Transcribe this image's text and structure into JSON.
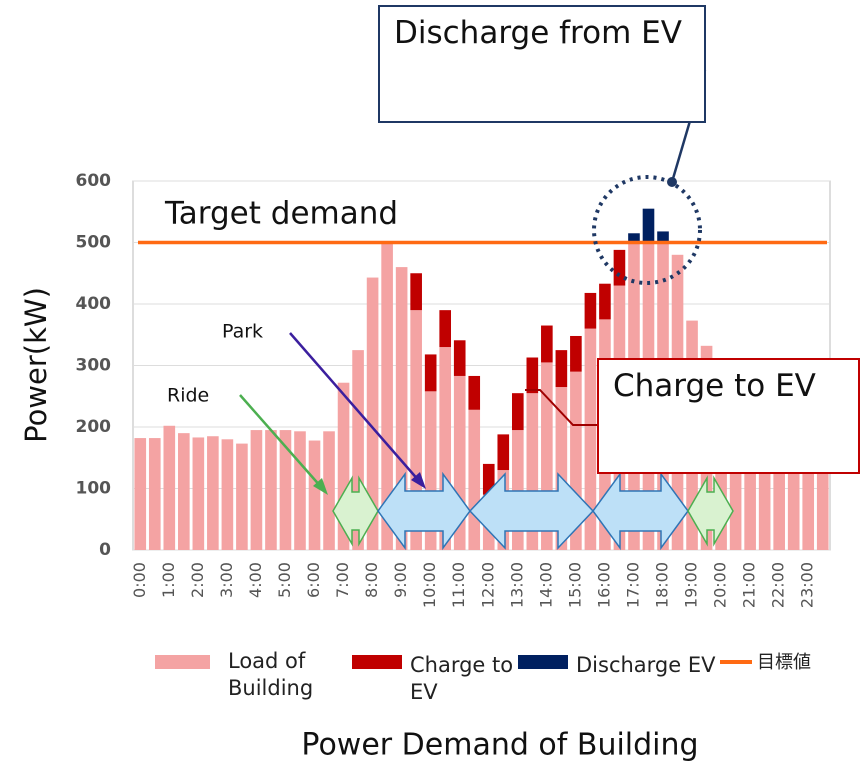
{
  "chart_data": {
    "type": "bar",
    "title": "Power Demand of Building",
    "y_label": "Power(kW)",
    "categories": [
      "0:00",
      null,
      "1:00",
      null,
      "2:00",
      null,
      "3:00",
      null,
      "4:00",
      null,
      "5:00",
      null,
      "6:00",
      null,
      "7:00",
      null,
      "8:00",
      null,
      "9:00",
      null,
      "10:00",
      null,
      "11:00",
      null,
      "12:00",
      null,
      "13:00",
      null,
      "14:00",
      null,
      "15:00",
      null,
      "16:00",
      null,
      "17:00",
      null,
      "18:00",
      null,
      "19:00",
      null,
      "20:00",
      null,
      "21:00",
      null,
      "22:00",
      null,
      "23:00",
      null
    ],
    "series": [
      {
        "name": "Load of Building",
        "color": "#f4a3a3",
        "values": [
          182,
          182,
          202,
          190,
          183,
          185,
          180,
          173,
          195,
          195,
          195,
          193,
          178,
          193,
          272,
          325,
          443,
          500,
          460,
          390,
          258,
          330,
          283,
          228,
          90,
          130,
          195,
          255,
          305,
          265,
          290,
          360,
          375,
          430,
          500,
          500,
          500,
          480,
          373,
          332,
          290,
          260,
          240,
          220,
          210,
          200,
          195,
          190
        ]
      },
      {
        "name": "Charge to EV",
        "color": "#c00000",
        "values": [
          null,
          null,
          null,
          null,
          null,
          null,
          null,
          null,
          null,
          null,
          null,
          null,
          null,
          null,
          null,
          null,
          null,
          null,
          null,
          60,
          60,
          60,
          58,
          55,
          50,
          58,
          60,
          58,
          60,
          60,
          58,
          58,
          58,
          58,
          null,
          null,
          null,
          null,
          null,
          null,
          null,
          null,
          null,
          null,
          null,
          null,
          null,
          null
        ]
      },
      {
        "name": "Discharge EV",
        "color": "#002060",
        "values": [
          null,
          null,
          null,
          null,
          null,
          null,
          null,
          null,
          null,
          null,
          null,
          null,
          null,
          null,
          null,
          null,
          null,
          null,
          null,
          null,
          null,
          null,
          null,
          null,
          null,
          null,
          null,
          null,
          null,
          null,
          null,
          null,
          null,
          null,
          15,
          55,
          18,
          null,
          null,
          null,
          null,
          null,
          null,
          null,
          null,
          null,
          null,
          null
        ]
      }
    ],
    "target": {
      "name": "目標値",
      "value": 500,
      "color": "#ff6a13"
    },
    "ylim": [
      0,
      600
    ],
    "yticks": [
      0,
      100,
      200,
      300,
      400,
      500,
      600
    ],
    "annotations": {
      "discharge": "Discharge from EV",
      "target": "Target demand",
      "park": "Park",
      "ride": "Ride",
      "charge": "Charge to EV"
    }
  }
}
